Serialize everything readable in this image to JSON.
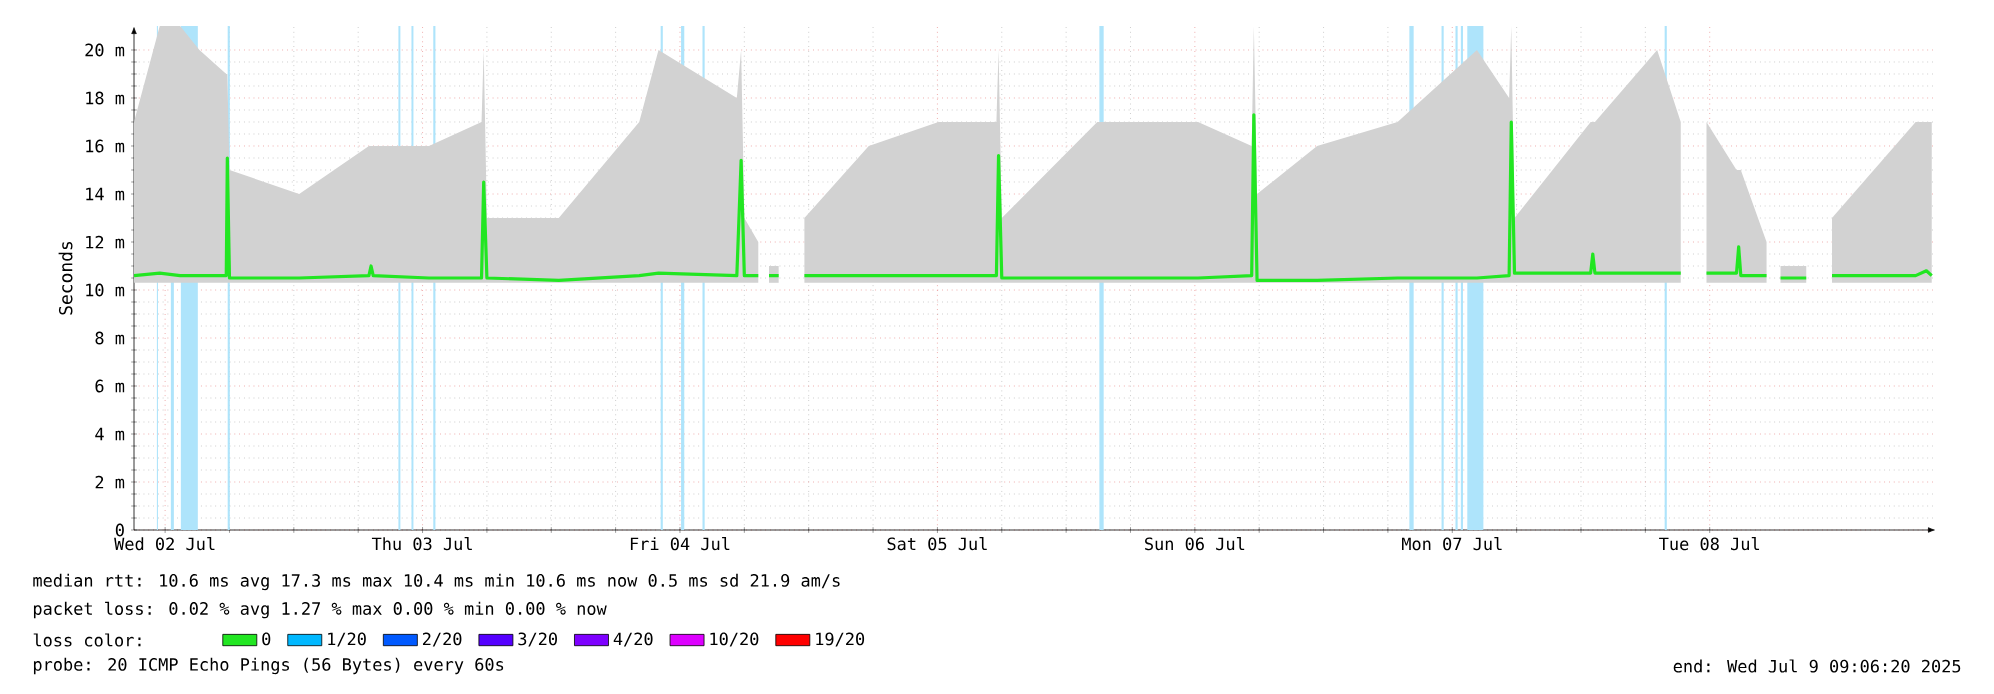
{
  "chart_data": {
    "type": "line",
    "ylabel": "Seconds",
    "legend_title": "loss color:",
    "legend": "bottom",
    "grid": true,
    "marker": "none",
    "line_style": "solid",
    "xlim": [
      "2025-07-02T09:06",
      "2025-07-09T09:06"
    ],
    "ylim": [
      0,
      21
    ],
    "xticks": [
      {
        "value": "2025-07-02T12:00",
        "label": "Wed 02 Jul"
      },
      {
        "value": "2025-07-03T12:00",
        "label": "Thu 03 Jul"
      },
      {
        "value": "2025-07-04T12:00",
        "label": "Fri 04 Jul"
      },
      {
        "value": "2025-07-05T12:00",
        "label": "Sat 05 Jul"
      },
      {
        "value": "2025-07-06T12:00",
        "label": "Sun 06 Jul"
      },
      {
        "value": "2025-07-07T12:00",
        "label": "Mon 07 Jul"
      },
      {
        "value": "2025-07-08T12:00",
        "label": "Tue 08 Jul"
      }
    ],
    "yticks": [
      {
        "value": 0,
        "label": "0"
      },
      {
        "value": 2,
        "label": "2 m"
      },
      {
        "value": 4,
        "label": "4 m"
      },
      {
        "value": 6,
        "label": "6 m"
      },
      {
        "value": 8,
        "label": "8 m"
      },
      {
        "value": 10,
        "label": "10 m"
      },
      {
        "value": 12,
        "label": "12 m"
      },
      {
        "value": 14,
        "label": "14 m"
      },
      {
        "value": 16,
        "label": "16 m"
      },
      {
        "value": 18,
        "label": "18 m"
      },
      {
        "value": 20,
        "label": "20 m"
      }
    ],
    "x": [
      "2025-07-02T09:06",
      "2025-07-02T11:30",
      "2025-07-02T13:24",
      "2025-07-02T15:12",
      "2025-07-02T17:42",
      "2025-07-02T17:48",
      "2025-07-02T18:00",
      "2025-07-03T00:30",
      "2025-07-03T07:00",
      "2025-07-03T07:12",
      "2025-07-03T07:24",
      "2025-07-03T12:36",
      "2025-07-03T17:30",
      "2025-07-03T17:42",
      "2025-07-03T18:00",
      "2025-07-04T00:42",
      "2025-07-04T08:12",
      "2025-07-04T10:00",
      "2025-07-04T17:18",
      "2025-07-04T17:42",
      "2025-07-04T18:00",
      "2025-07-04T19:18",
      "2025-07-04T19:48",
      "2025-07-04T20:18",
      "2025-07-04T21:12",
      "2025-07-04T22:06",
      "2025-07-04T23:36",
      "2025-07-05T05:36",
      "2025-07-05T12:06",
      "2025-07-05T17:30",
      "2025-07-05T17:42",
      "2025-07-05T18:00",
      "2025-07-06T02:54",
      "2025-07-06T12:18",
      "2025-07-06T17:18",
      "2025-07-06T17:30",
      "2025-07-06T17:48",
      "2025-07-06T23:24",
      "2025-07-07T06:54",
      "2025-07-07T14:18",
      "2025-07-07T17:18",
      "2025-07-07T17:30",
      "2025-07-07T17:48",
      "2025-07-08T00:54",
      "2025-07-08T01:06",
      "2025-07-08T01:18",
      "2025-07-08T07:06",
      "2025-07-08T09:18",
      "2025-07-08T10:48",
      "2025-07-08T11:42",
      "2025-07-08T14:30",
      "2025-07-08T14:42",
      "2025-07-08T14:54",
      "2025-07-08T17:18",
      "2025-07-08T18:12",
      "2025-07-08T18:36",
      "2025-07-08T21:00",
      "2025-07-08T22:06",
      "2025-07-08T23:24",
      "2025-07-09T07:12",
      "2025-07-09T08:12",
      "2025-07-09T08:42"
    ],
    "series": [
      {
        "name": "0",
        "color": "#22e622",
        "values": [
          10.6,
          10.7,
          10.6,
          10.6,
          10.6,
          15.5,
          10.5,
          10.5,
          10.6,
          11.0,
          10.6,
          10.5,
          10.5,
          14.5,
          10.5,
          10.4,
          10.6,
          10.7,
          10.6,
          15.4,
          10.6,
          10.6,
          null,
          10.6,
          10.6,
          null,
          10.6,
          10.6,
          10.6,
          10.6,
          15.6,
          10.5,
          10.5,
          10.5,
          10.6,
          17.3,
          10.4,
          10.4,
          10.5,
          10.5,
          10.6,
          17.0,
          10.7,
          10.7,
          11.5,
          10.7,
          10.7,
          10.7,
          null,
          10.7,
          10.7,
          11.8,
          10.6,
          10.6,
          null,
          10.5,
          10.5,
          null,
          10.6,
          10.6,
          10.8,
          10.6
        ],
        "lower": [
          10.3,
          10.3,
          10.3,
          10.3,
          10.3,
          10.3,
          10.3,
          10.3,
          10.3,
          10.3,
          10.3,
          10.3,
          10.3,
          10.3,
          10.3,
          10.3,
          10.3,
          10.3,
          10.3,
          10.3,
          10.3,
          10.3,
          null,
          10.3,
          10.3,
          null,
          10.3,
          10.3,
          10.3,
          10.3,
          10.3,
          10.3,
          10.3,
          10.3,
          10.3,
          10.3,
          10.3,
          10.3,
          10.3,
          10.3,
          10.3,
          10.3,
          10.3,
          10.3,
          10.3,
          10.3,
          10.3,
          10.3,
          null,
          10.3,
          10.3,
          10.3,
          10.3,
          10.3,
          null,
          10.3,
          10.3,
          null,
          10.3,
          10.3,
          10.3,
          10.3
        ],
        "upper": [
          17,
          21,
          21,
          20,
          19,
          19,
          15,
          14,
          16,
          16,
          16,
          16,
          17,
          20,
          13,
          13,
          17,
          20,
          18,
          20,
          13,
          12,
          null,
          11,
          11,
          null,
          13,
          16,
          17,
          17,
          20,
          13,
          17,
          17,
          16,
          21,
          14,
          16,
          17,
          20,
          18,
          21,
          13,
          17,
          17,
          17,
          20,
          17,
          null,
          17,
          15,
          15,
          15,
          12,
          null,
          11,
          11,
          null,
          13,
          17,
          17,
          17
        ]
      },
      {
        "name": "1/20",
        "color": "#00b8ff",
        "values": [
          null,
          null,
          null,
          null,
          null,
          null,
          null,
          null,
          null,
          null,
          null,
          null,
          null,
          null,
          null,
          null,
          null,
          null,
          null,
          null,
          null,
          null,
          null,
          null,
          null,
          null,
          null,
          null,
          null,
          null,
          null,
          null,
          null,
          null,
          null,
          null,
          null,
          null,
          null,
          null,
          null,
          null,
          null,
          null,
          null,
          null,
          null,
          null,
          null,
          null,
          null,
          null,
          null,
          null,
          null,
          null,
          null,
          null,
          null,
          null,
          null,
          null
        ]
      },
      {
        "name": "2/20",
        "color": "#0059ff",
        "values": [
          null,
          null,
          null,
          null,
          null,
          null,
          null,
          null,
          null,
          null,
          null,
          null,
          null,
          null,
          null,
          null,
          null,
          null,
          null,
          null,
          null,
          null,
          null,
          null,
          null,
          null,
          null,
          null,
          null,
          null,
          null,
          null,
          null,
          null,
          null,
          null,
          null,
          null,
          null,
          null,
          null,
          null,
          null,
          null,
          null,
          null,
          null,
          null,
          null,
          null,
          null,
          null,
          null,
          null,
          null,
          null,
          null,
          null,
          null,
          null,
          null,
          null
        ]
      },
      {
        "name": "3/20",
        "color": "#5500ff",
        "values": [
          null,
          null,
          null,
          null,
          null,
          null,
          null,
          null,
          null,
          null,
          null,
          null,
          null,
          null,
          null,
          null,
          null,
          null,
          null,
          null,
          null,
          null,
          null,
          null,
          null,
          null,
          null,
          null,
          null,
          null,
          null,
          null,
          null,
          null,
          null,
          null,
          null,
          null,
          null,
          null,
          null,
          null,
          null,
          null,
          null,
          null,
          null,
          null,
          null,
          null,
          null,
          null,
          null,
          null,
          null,
          null,
          null,
          null,
          null,
          null,
          null,
          null
        ]
      },
      {
        "name": "4/20",
        "color": "#7e00ff",
        "values": [
          null,
          null,
          null,
          null,
          null,
          null,
          null,
          null,
          null,
          null,
          null,
          null,
          null,
          null,
          null,
          null,
          null,
          null,
          null,
          null,
          null,
          null,
          null,
          null,
          null,
          null,
          null,
          null,
          null,
          null,
          null,
          null,
          null,
          null,
          null,
          null,
          null,
          null,
          null,
          null,
          null,
          null,
          null,
          null,
          null,
          null,
          null,
          null,
          null,
          null,
          null,
          null,
          null,
          null,
          null,
          null,
          null,
          null,
          null,
          null,
          null,
          null
        ]
      },
      {
        "name": "10/20",
        "color": "#dd00ff",
        "values": [
          null,
          null,
          null,
          null,
          null,
          null,
          null,
          null,
          null,
          null,
          null,
          null,
          null,
          null,
          null,
          null,
          null,
          null,
          null,
          null,
          null,
          null,
          null,
          null,
          null,
          null,
          null,
          null,
          null,
          null,
          null,
          null,
          null,
          null,
          null,
          null,
          null,
          null,
          null,
          null,
          null,
          null,
          null,
          null,
          null,
          null,
          null,
          null,
          null,
          null,
          null,
          null,
          null,
          null,
          null,
          null,
          null,
          null,
          null,
          null,
          null,
          null
        ]
      },
      {
        "name": "19/20",
        "color": "#ff0000",
        "values": [
          null,
          null,
          null,
          null,
          null,
          null,
          null,
          null,
          null,
          null,
          null,
          null,
          null,
          null,
          null,
          null,
          null,
          null,
          null,
          null,
          null,
          null,
          null,
          null,
          null,
          null,
          null,
          null,
          null,
          null,
          null,
          null,
          null,
          null,
          null,
          null,
          null,
          null,
          null,
          null,
          null,
          null,
          null,
          null,
          null,
          null,
          null,
          null,
          null,
          null,
          null,
          null,
          null,
          null,
          null,
          null,
          null,
          null,
          null,
          null,
          null,
          null
        ]
      }
    ],
    "bands": [
      {
        "axis": "x",
        "from": "2025-07-02T11:14",
        "to": "2025-07-02T11:20",
        "color": "#aee4fb"
      },
      {
        "axis": "x",
        "from": "2025-07-02T12:32",
        "to": "2025-07-02T12:49",
        "color": "#aee4fb"
      },
      {
        "axis": "x",
        "from": "2025-07-02T13:28",
        "to": "2025-07-02T15:03",
        "color": "#aee4fb"
      },
      {
        "axis": "x",
        "from": "2025-07-02T17:50",
        "to": "2025-07-02T18:02",
        "color": "#aee4fb"
      },
      {
        "axis": "x",
        "from": "2025-07-03T09:45",
        "to": "2025-07-03T09:56",
        "color": "#aee4fb"
      },
      {
        "axis": "x",
        "from": "2025-07-03T10:58",
        "to": "2025-07-03T11:09",
        "color": "#aee4fb"
      },
      {
        "axis": "x",
        "from": "2025-07-03T13:00",
        "to": "2025-07-03T13:12",
        "color": "#aee4fb"
      },
      {
        "axis": "x",
        "from": "2025-07-04T10:12",
        "to": "2025-07-04T10:24",
        "color": "#aee4fb"
      },
      {
        "axis": "x",
        "from": "2025-07-04T12:06",
        "to": "2025-07-04T12:24",
        "color": "#aee4fb"
      },
      {
        "axis": "x",
        "from": "2025-07-04T14:06",
        "to": "2025-07-04T14:18",
        "color": "#aee4fb"
      },
      {
        "axis": "x",
        "from": "2025-07-06T03:06",
        "to": "2025-07-06T03:30",
        "color": "#aee4fb"
      },
      {
        "axis": "x",
        "from": "2025-07-07T08:00",
        "to": "2025-07-07T08:24",
        "color": "#aee4fb"
      },
      {
        "axis": "x",
        "from": "2025-07-07T11:00",
        "to": "2025-07-07T11:12",
        "color": "#aee4fb"
      },
      {
        "axis": "x",
        "from": "2025-07-07T12:18",
        "to": "2025-07-07T12:30",
        "color": "#aee4fb"
      },
      {
        "axis": "x",
        "from": "2025-07-07T12:48",
        "to": "2025-07-07T13:00",
        "color": "#aee4fb"
      },
      {
        "axis": "x",
        "from": "2025-07-07T13:24",
        "to": "2025-07-07T14:54",
        "color": "#aee4fb"
      },
      {
        "axis": "x",
        "from": "2025-07-08T07:48",
        "to": "2025-07-08T08:00",
        "color": "#aee4fb"
      }
    ],
    "annotations": [
      "median rtt:  10.6 ms avg  17.3 ms max  10.4 ms min  10.6 ms now  0.5 ms sd  21.9   am/s",
      "packet loss: 0.02 % avg  1.27 % max  0.00 % min  0.00 % now",
      "probe:       20 ICMP Echo Pings (56 Bytes) every 60s",
      "end: Wed Jul  9 09:06:20 2025"
    ]
  }
}
